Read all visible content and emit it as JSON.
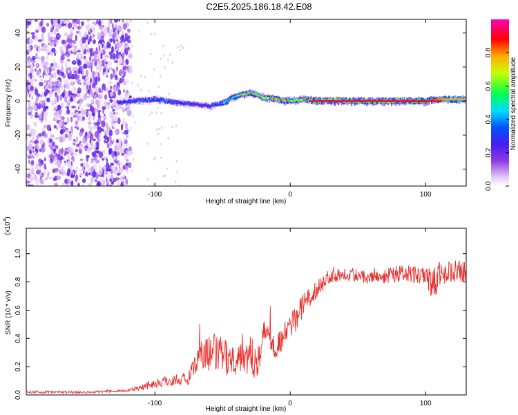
{
  "figure": {
    "title": "C2E5.2025.186.18.42.E08"
  },
  "chart_data": [
    {
      "type": "heatmap",
      "xlabel": "Height of straight line (km)",
      "ylabel": "Frequency (Hz)",
      "xlim": [
        -195,
        130
      ],
      "ylim": [
        -50,
        48
      ],
      "xticks": [
        -100,
        0,
        100
      ],
      "xtick_labels": [
        "-100",
        "0",
        "100"
      ],
      "yticks": [
        -40,
        -20,
        0,
        20,
        40
      ],
      "ytick_labels": [
        "-40",
        "-20",
        "0",
        "20",
        "40"
      ],
      "colorbar": {
        "label": "Normalized spectral amplitude",
        "range": [
          0,
          1
        ],
        "ticks": [
          0.0,
          0.2,
          0.4,
          0.6,
          0.8
        ],
        "tick_labels": [
          "0.0",
          "0.2",
          "0.4",
          "0.6",
          "0.8"
        ],
        "colormap": "rainbow (white-violet-blue-cyan-green-yellow-red-magenta)"
      },
      "features": {
        "noise_region_x": [
          -195,
          -118
        ],
        "ridge": {
          "x": [
            -128,
            -115,
            -100,
            -85,
            -70,
            -60,
            -50,
            -40,
            -30,
            -20,
            -10,
            0,
            10,
            20,
            50,
            80,
            100,
            110,
            130
          ],
          "freq_hz": [
            -1,
            0,
            1,
            -1,
            -2,
            -3,
            -1,
            3,
            5,
            2,
            1,
            0,
            1,
            0,
            0,
            0,
            0,
            1,
            1
          ],
          "amplitude": [
            0.3,
            0.35,
            0.4,
            0.35,
            0.3,
            0.3,
            0.45,
            0.6,
            0.7,
            0.75,
            0.8,
            0.7,
            0.8,
            1.0,
            1.0,
            1.0,
            0.9,
            0.8,
            0.75
          ]
        }
      }
    },
    {
      "type": "line",
      "xlabel": "Height of straight line (km)",
      "ylabel": "SNR (10 * v/v)",
      "y_multiplier_label": "(x10",
      "y_multiplier_exp": "4",
      "xlim": [
        -195,
        130
      ],
      "ylim": [
        0,
        1.18
      ],
      "xticks": [
        -100,
        0,
        100
      ],
      "xtick_labels": [
        "-100",
        "0",
        "100"
      ],
      "yticks": [
        0.0,
        0.2,
        0.4,
        0.6,
        0.8,
        1.0
      ],
      "ytick_labels": [
        "0.0",
        "0.2",
        "0.4",
        "0.6",
        "0.8",
        "1.0"
      ],
      "series": [
        {
          "color": "#e8302d",
          "x": [
            -195,
            -150,
            -120,
            -105,
            -90,
            -75,
            -65,
            -55,
            -45,
            -35,
            -25,
            -18,
            -10,
            -5,
            0,
            5,
            10,
            20,
            30,
            40,
            55,
            70,
            85,
            100,
            105,
            110,
            120,
            130
          ],
          "y": [
            0.02,
            0.02,
            0.03,
            0.07,
            0.1,
            0.12,
            0.28,
            0.3,
            0.25,
            0.3,
            0.25,
            0.45,
            0.35,
            0.4,
            0.5,
            0.55,
            0.65,
            0.75,
            0.85,
            0.86,
            0.84,
            0.85,
            0.86,
            0.83,
            0.75,
            0.85,
            0.88,
            0.86
          ],
          "noise": [
            0.01,
            0.01,
            0.01,
            0.03,
            0.04,
            0.05,
            0.12,
            0.14,
            0.12,
            0.14,
            0.14,
            0.12,
            0.1,
            0.1,
            0.1,
            0.1,
            0.08,
            0.06,
            0.06,
            0.05,
            0.05,
            0.06,
            0.06,
            0.08,
            0.14,
            0.1,
            0.08,
            0.08
          ]
        }
      ]
    }
  ]
}
